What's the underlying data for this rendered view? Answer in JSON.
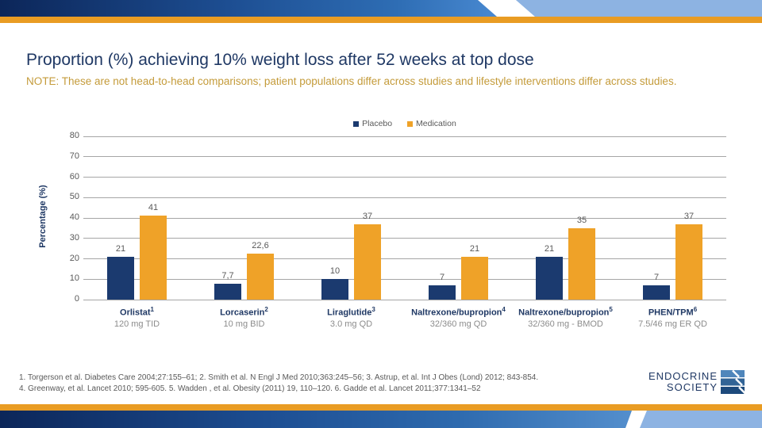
{
  "slide": {
    "title": "Proportion (%) achieving 10% weight loss after 52 weeks at top dose",
    "note": "NOTE: These are not head-to-head comparisons; patient populations differ across studies and lifestyle interventions differ across studies.",
    "footnotes": {
      "line1": "1. Torgerson et al. Diabetes Care 2004;27:155–61;  2. Smith et al. N Engl J Med 2010;363:245–56;  3. Astrup, et al. Int J Obes (Lond) 2012; 843-854.",
      "line2": "4. Greenway, et al. Lancet 2010; 595-605.  5. Wadden , et al. Obesity (2011) 19, 110–120.   6. Gadde et al. Lancet 2011;377:1341–52"
    },
    "logo": {
      "line1": "ENDOCRINE",
      "line2": "SOCIETY"
    }
  },
  "colors": {
    "navy": "#1b3a6f",
    "orange": "#efa228",
    "title_navy": "#1f3864",
    "note_gold": "#c49b3a",
    "gridline_gray": "#a6a6a6",
    "banner_light_blue": "#8db3e2",
    "stripe_orange": "#e99c23"
  },
  "chart_data": {
    "type": "bar",
    "title": "",
    "xlabel": "",
    "ylabel": "Percentage (%)",
    "ylim": [
      0,
      80
    ],
    "yticks": [
      0,
      10,
      20,
      30,
      40,
      50,
      60,
      70,
      80
    ],
    "grid": true,
    "legend_position": "top-center",
    "categories": [
      "Orlistat¹ 120 mg TID",
      "Lorcaserin² 10 mg BID",
      "Liraglutide³ 3.0 mg QD",
      "Naltrexone/bupropion⁴ 32/360 mg QD",
      "Naltrexone/bupropion⁵ 32/360 mg - BMOD",
      "PHEN/TPM⁶ 7.5/46 mg ER QD"
    ],
    "series": [
      {
        "name": "Placebo",
        "color": "#1b3a6f",
        "values": [
          21,
          7.7,
          10,
          7,
          21,
          7
        ]
      },
      {
        "name": "Medication",
        "color": "#efa228",
        "values": [
          41,
          22.6,
          37,
          21,
          35,
          37
        ]
      }
    ],
    "groups": [
      {
        "drug": "Orlistat",
        "sup": "1",
        "dose": "120 mg TID",
        "values": [
          21,
          41
        ],
        "labels": [
          "21",
          "41"
        ]
      },
      {
        "drug": "Lorcaserin",
        "sup": "2",
        "dose": "10 mg BID",
        "values": [
          7.7,
          22.6
        ],
        "labels": [
          "7,7",
          "22,6"
        ]
      },
      {
        "drug": "Liraglutide",
        "sup": "3",
        "dose": "3.0 mg QD",
        "values": [
          10,
          37
        ],
        "labels": [
          "10",
          "37"
        ]
      },
      {
        "drug": "Naltrexone/bupropion",
        "sup": "4",
        "dose": "32/360 mg QD",
        "values": [
          7,
          21
        ],
        "labels": [
          "7",
          "21"
        ]
      },
      {
        "drug": "Naltrexone/bupropion",
        "sup": "5",
        "dose": "32/360 mg - BMOD",
        "values": [
          21,
          35
        ],
        "labels": [
          "21",
          "35"
        ]
      },
      {
        "drug": "PHEN/TPM",
        "sup": "6",
        "dose": "7.5/46 mg ER QD",
        "values": [
          7,
          37
        ],
        "labels": [
          "7",
          "37"
        ]
      }
    ]
  }
}
